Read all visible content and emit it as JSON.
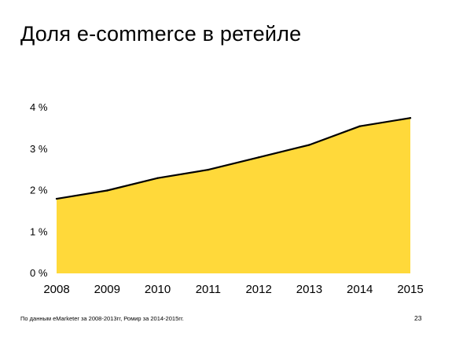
{
  "slide": {
    "title": "Доля e-commerce в ретейле",
    "footnote": "По данным eMarketer за 2008-2013гг, Ромир за 2014-2015гг.",
    "page_number": "23"
  },
  "colors": {
    "area_fill": "#FFD93A",
    "line": "#000000",
    "background": "#FFFFFF"
  },
  "chart_data": {
    "type": "area",
    "title": "",
    "xlabel": "",
    "ylabel": "",
    "x": [
      "2008",
      "2009",
      "2010",
      "2011",
      "2012",
      "2013",
      "2014",
      "2015"
    ],
    "values": [
      1.8,
      2.0,
      2.3,
      2.5,
      2.8,
      3.1,
      3.55,
      3.75
    ],
    "ylim": [
      0,
      4
    ],
    "y_ticks": [
      0,
      1,
      2,
      3,
      4
    ],
    "y_tick_labels": [
      "0 %",
      "1 %",
      "2 %",
      "3 %",
      "4 %"
    ],
    "grid": false,
    "legend": "none"
  }
}
